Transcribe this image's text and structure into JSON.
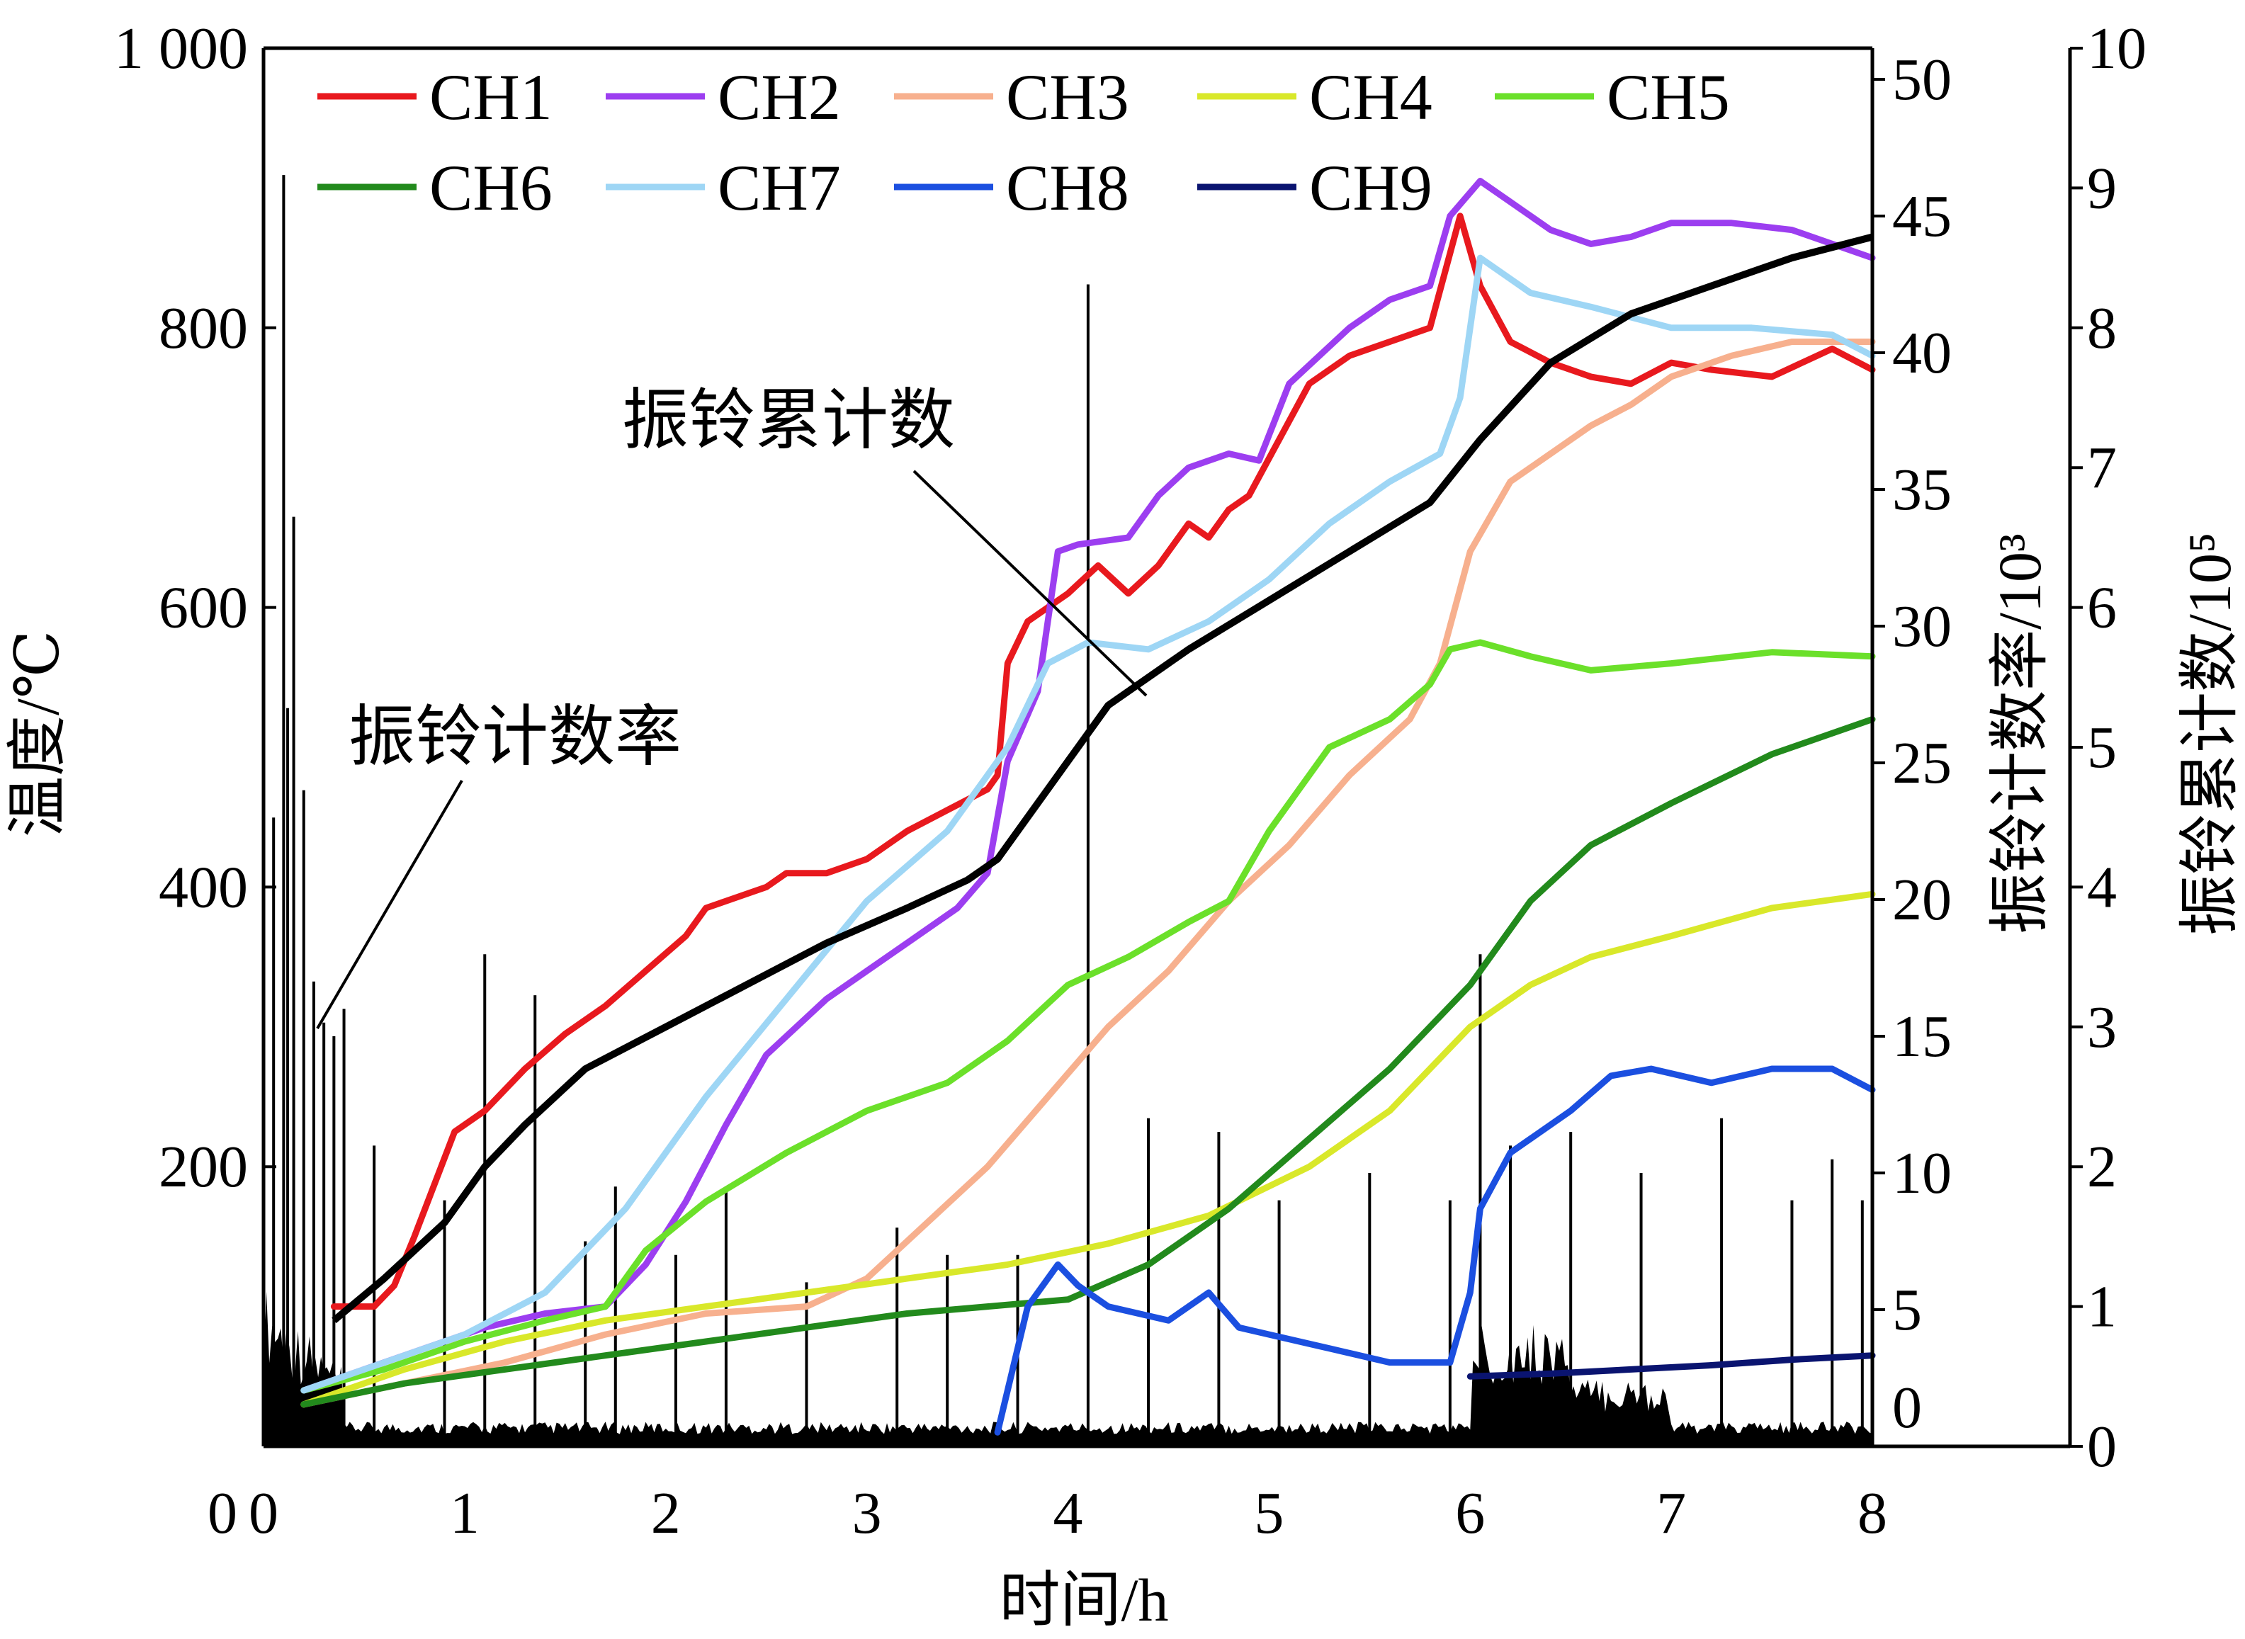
{
  "chart_data": {
    "type": "line",
    "xlabel": "时间/h",
    "ylabel_left": "温度/℃",
    "ylabel_right1": "振铃计数率/10³",
    "ylabel_right2": "振铃累计数/10⁵",
    "xlim": [
      0,
      8
    ],
    "ylim_left": [
      0,
      1000
    ],
    "ylim_right1": [
      0,
      50
    ],
    "ylim_right2": [
      0,
      10
    ],
    "x_ticks": [
      "0",
      "1",
      "2",
      "3",
      "4",
      "5",
      "6",
      "7",
      "8"
    ],
    "y_ticks_left": [
      "1 000",
      "800",
      "600",
      "400",
      "200"
    ],
    "y_ticks_right1": [
      "50",
      "45",
      "40",
      "35",
      "30",
      "25",
      "20",
      "15",
      "10",
      "5",
      "0"
    ],
    "y_ticks_right2": [
      "10",
      "9",
      "8",
      "7",
      "6",
      "5",
      "4",
      "3",
      "2",
      "1",
      "0"
    ],
    "legend_position": "top",
    "annotations": {
      "cumulative": "振铃累计数",
      "rate": "振铃计数率"
    },
    "series": [
      {
        "name": "CH1",
        "color": "#e8191e",
        "x": [
          0.35,
          0.55,
          0.65,
          0.75,
          0.95,
          1.1,
          1.3,
          1.5,
          1.7,
          1.9,
          2.1,
          2.2,
          2.3,
          2.5,
          2.6,
          2.8,
          3.0,
          3.2,
          3.4,
          3.6,
          3.65,
          3.7,
          3.8,
          4.0,
          4.15,
          4.3,
          4.45,
          4.6,
          4.7,
          4.8,
          4.9,
          5.05,
          5.2,
          5.4,
          5.6,
          5.8,
          5.95,
          6.05,
          6.2,
          6.4,
          6.6,
          6.8,
          7.0,
          7.2,
          7.5,
          7.8,
          8.0
        ],
        "y": [
          100,
          100,
          115,
          150,
          225,
          240,
          270,
          295,
          315,
          340,
          365,
          385,
          390,
          400,
          410,
          410,
          420,
          440,
          455,
          470,
          480,
          560,
          590,
          610,
          630,
          610,
          630,
          660,
          650,
          670,
          680,
          720,
          760,
          780,
          790,
          800,
          880,
          830,
          790,
          775,
          765,
          760,
          775,
          770,
          765,
          785,
          770
        ]
      },
      {
        "name": "CH2",
        "color": "#9c3ef0",
        "x": [
          0.2,
          0.5,
          0.8,
          1.1,
          1.4,
          1.7,
          1.9,
          2.1,
          2.3,
          2.5,
          2.8,
          3.0,
          3.2,
          3.45,
          3.6,
          3.7,
          3.85,
          3.95,
          4.05,
          4.3,
          4.45,
          4.6,
          4.8,
          4.95,
          5.1,
          5.4,
          5.6,
          5.8,
          5.9,
          6.05,
          6.2,
          6.4,
          6.6,
          6.8,
          7.0,
          7.3,
          7.6,
          8.0
        ],
        "y": [
          40,
          55,
          70,
          85,
          95,
          100,
          130,
          175,
          230,
          280,
          320,
          340,
          360,
          385,
          410,
          490,
          540,
          640,
          645,
          650,
          680,
          700,
          710,
          705,
          760,
          800,
          820,
          830,
          880,
          905,
          890,
          870,
          860,
          865,
          875,
          875,
          870,
          850
        ]
      },
      {
        "name": "CH3",
        "color": "#f7b08e",
        "x": [
          0.2,
          0.7,
          1.2,
          1.7,
          2.2,
          2.7,
          3.0,
          3.3,
          3.6,
          3.9,
          4.2,
          4.5,
          4.8,
          5.1,
          5.4,
          5.7,
          5.85,
          6.0,
          6.2,
          6.4,
          6.6,
          6.8,
          7.0,
          7.3,
          7.6,
          8.0
        ],
        "y": [
          30,
          45,
          60,
          80,
          95,
          100,
          120,
          160,
          200,
          250,
          300,
          340,
          390,
          430,
          480,
          520,
          560,
          640,
          690,
          710,
          730,
          745,
          765,
          780,
          790,
          790
        ]
      },
      {
        "name": "CH4",
        "color": "#d9e82a",
        "x": [
          0.2,
          0.7,
          1.2,
          1.7,
          2.2,
          2.7,
          3.2,
          3.7,
          4.2,
          4.7,
          5.2,
          5.6,
          6.0,
          6.3,
          6.6,
          7.0,
          7.5,
          8.0
        ],
        "y": [
          30,
          55,
          75,
          90,
          100,
          110,
          120,
          130,
          145,
          165,
          200,
          240,
          300,
          330,
          350,
          365,
          385,
          395
        ]
      },
      {
        "name": "CH5",
        "color": "#6be02a",
        "x": [
          0.2,
          0.6,
          1.0,
          1.4,
          1.7,
          1.9,
          2.2,
          2.6,
          3.0,
          3.4,
          3.7,
          4.0,
          4.3,
          4.6,
          4.8,
          5.0,
          5.3,
          5.6,
          5.8,
          5.9,
          6.05,
          6.3,
          6.6,
          7.0,
          7.5,
          8.0
        ],
        "y": [
          40,
          55,
          75,
          90,
          100,
          140,
          175,
          210,
          240,
          260,
          290,
          330,
          350,
          375,
          390,
          440,
          500,
          520,
          545,
          570,
          575,
          565,
          555,
          560,
          568,
          565
        ]
      },
      {
        "name": "CH6",
        "color": "#228a1c",
        "x": [
          0.2,
          0.7,
          1.2,
          1.7,
          2.2,
          2.7,
          3.2,
          3.6,
          4.0,
          4.4,
          4.8,
          5.2,
          5.6,
          6.0,
          6.3,
          6.6,
          7.0,
          7.5,
          8.0
        ],
        "y": [
          30,
          45,
          55,
          65,
          75,
          85,
          95,
          100,
          105,
          130,
          170,
          220,
          270,
          330,
          390,
          430,
          460,
          495,
          520
        ]
      },
      {
        "name": "CH7",
        "color": "#9ed6f5",
        "x": [
          0.2,
          0.6,
          1.0,
          1.4,
          1.8,
          2.2,
          2.6,
          3.0,
          3.4,
          3.7,
          3.9,
          4.1,
          4.4,
          4.7,
          5.0,
          5.3,
          5.6,
          5.85,
          5.95,
          6.05,
          6.3,
          6.6,
          7.0,
          7.4,
          7.8,
          8.0
        ],
        "y": [
          40,
          60,
          80,
          110,
          170,
          250,
          320,
          390,
          440,
          500,
          560,
          575,
          570,
          590,
          620,
          660,
          690,
          710,
          750,
          850,
          825,
          815,
          800,
          800,
          795,
          780
        ]
      },
      {
        "name": "CH8",
        "color": "#1b4fe0",
        "x": [
          3.65,
          3.8,
          3.95,
          4.05,
          4.2,
          4.5,
          4.7,
          4.85,
          5.0,
          5.3,
          5.6,
          5.9,
          6.0,
          6.05,
          6.2,
          6.5,
          6.7,
          6.9,
          7.2,
          7.5,
          7.8,
          8.0
        ],
        "y": [
          10,
          100,
          130,
          115,
          100,
          90,
          110,
          85,
          80,
          70,
          60,
          60,
          110,
          170,
          210,
          240,
          265,
          270,
          260,
          270,
          270,
          255
        ]
      },
      {
        "name": "CH9",
        "color": "#0a1470",
        "x": [
          6.0,
          6.4,
          6.8,
          7.2,
          7.6,
          8.0
        ],
        "y": [
          50,
          52,
          55,
          58,
          62,
          65
        ]
      }
    ],
    "cumulative_series": {
      "name": "振铃累计数",
      "color": "#000000",
      "axis": "right2",
      "x": [
        0.35,
        0.6,
        0.9,
        1.1,
        1.3,
        1.6,
        2.0,
        2.4,
        2.8,
        3.2,
        3.5,
        3.65,
        3.8,
        4.0,
        4.2,
        4.6,
        5.0,
        5.4,
        5.8,
        6.05,
        6.4,
        6.8,
        7.2,
        7.6,
        8.0
      ],
      "y": [
        0.9,
        1.2,
        1.6,
        2.0,
        2.3,
        2.7,
        3.0,
        3.3,
        3.6,
        3.85,
        4.05,
        4.2,
        4.5,
        4.9,
        5.3,
        5.7,
        6.05,
        6.4,
        6.75,
        7.2,
        7.75,
        8.1,
        8.3,
        8.5,
        8.65
      ]
    },
    "rate_series": {
      "name": "振铃计数率",
      "color": "#000000",
      "axis": "right1",
      "spikes": {
        "x": [
          0.05,
          0.1,
          0.12,
          0.15,
          0.2,
          0.25,
          0.3,
          0.35,
          0.4,
          0.55,
          0.9,
          1.1,
          1.35,
          1.6,
          1.75,
          2.05,
          2.3,
          2.7,
          3.15,
          3.4,
          3.75,
          4.1,
          4.4,
          4.75,
          5.05,
          5.5,
          5.9,
          6.05,
          6.2,
          6.5,
          6.85,
          7.25,
          7.6,
          7.8,
          7.95
        ],
        "y": [
          23,
          46.5,
          27,
          34,
          24,
          17,
          15.5,
          15,
          16,
          11,
          9,
          18,
          16.5,
          7.5,
          9.5,
          7,
          9.5,
          6,
          8,
          7,
          7,
          42.5,
          12,
          11.5,
          9,
          10,
          9,
          18,
          11,
          11.5,
          10,
          12,
          9,
          10.5,
          9
        ]
      }
    }
  }
}
